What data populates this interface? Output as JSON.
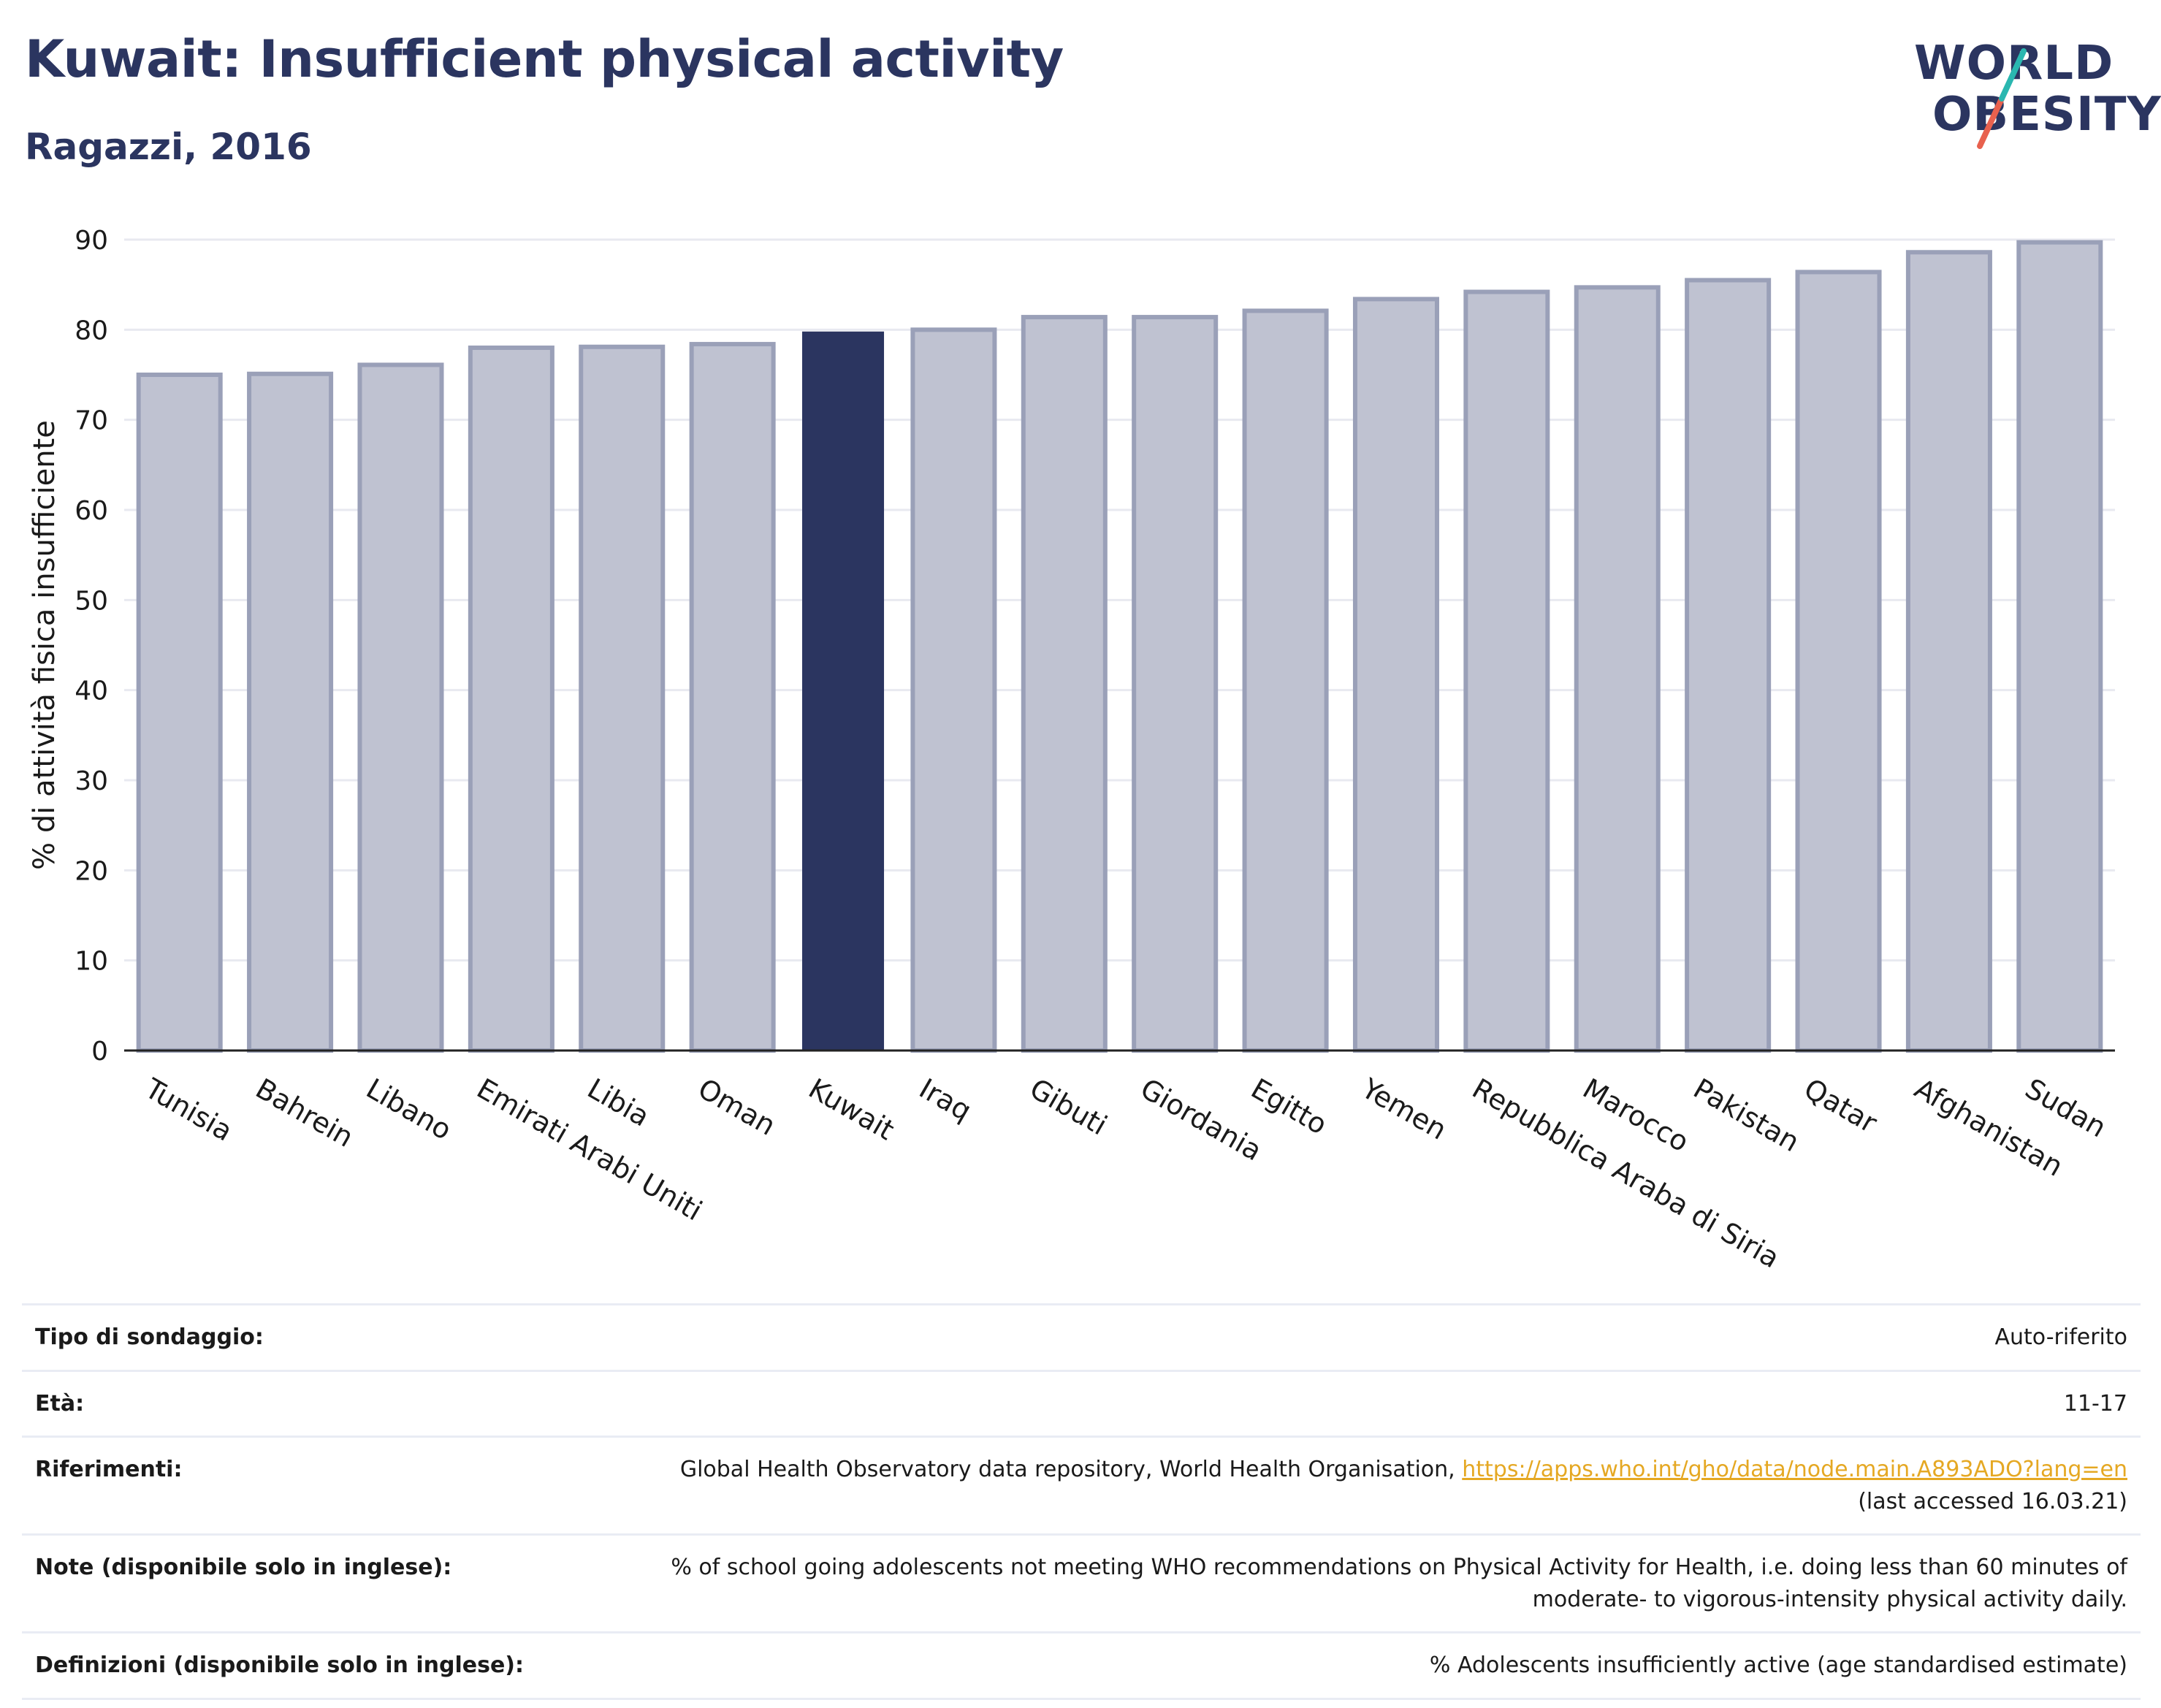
{
  "header": {
    "title": "Kuwait: Insufficient physical activity",
    "subtitle": "Ragazzi, 2016"
  },
  "logo": {
    "line1": "WORLD",
    "line2": "OBESITY"
  },
  "colors": {
    "highlight": "#2b3560",
    "bar_fill": "#bfc2d1",
    "bar_edge": "#9aa0b8",
    "grid": "#e8e9f0",
    "slash_teal": "#2ab7b0",
    "slash_red": "#e8614e"
  },
  "chart_data": {
    "type": "bar",
    "ylabel": "% di attività fisica insufficiente",
    "ylim": [
      0,
      90
    ],
    "yticks": [
      0,
      10,
      20,
      30,
      40,
      50,
      60,
      70,
      80,
      90
    ],
    "categories": [
      "Tunisia",
      "Bahrein",
      "Libano",
      "Emirati Arabi Uniti",
      "Libia",
      "Oman",
      "Kuwait",
      "Iraq",
      "Gibuti",
      "Giordania",
      "Egitto",
      "Yemen",
      "Repubblica Araba di Siria",
      "Marocco",
      "Pakistan",
      "Qatar",
      "Afghanistan",
      "Sudan"
    ],
    "values": [
      75.0,
      75.1,
      76.1,
      78.0,
      78.1,
      78.4,
      79.8,
      80.0,
      81.4,
      81.4,
      82.1,
      83.4,
      84.2,
      84.7,
      85.5,
      86.4,
      88.6,
      89.7
    ],
    "highlight": "Kuwait",
    "grid": true
  },
  "meta": [
    {
      "label": "Tipo di sondaggio:",
      "value": "Auto-riferito"
    },
    {
      "label": "Età:",
      "value": "11-17"
    },
    {
      "label": "Riferimenti:",
      "value": "Global Health Observatory data repository, World Health Organisation,",
      "link": "https://apps.who.int/gho/data/node.main.A893ADO?lang=en",
      "value2": "(last accessed 16.03.21)"
    },
    {
      "label": "Note (disponibile solo in inglese):",
      "value": "% of school going adolescents not meeting WHO recommendations on Physical Activity for Health, i.e. doing less than 60 minutes of",
      "value2": "moderate- to vigorous-intensity physical activity daily."
    },
    {
      "label": "Definizioni (disponibile solo in inglese):",
      "value": "% Adolescents insufficiently active (age standardised estimate)"
    }
  ]
}
